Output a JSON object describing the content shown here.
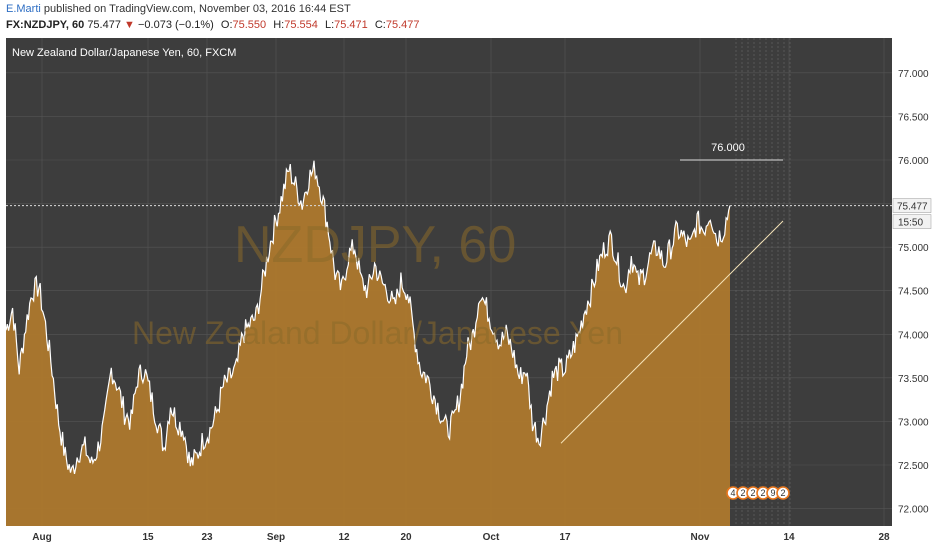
{
  "header": {
    "author": "E.Marti",
    "published_text": "published on TradingView.com, November 03, 2016 16:44 EST",
    "symbol": "FX:NZDJPY, 60",
    "last": "75.477",
    "change": "−0.073 (−0.1%)",
    "o_label": "O:",
    "o": "75.550",
    "h_label": "H:",
    "h": "75.554",
    "l_label": "L:",
    "l": "75.471",
    "c_label": "C:",
    "c": "75.477"
  },
  "watermark": {
    "symbol": "NZDJPY, 60",
    "name": "New Zealand Dollar/Japanese Yen"
  },
  "colors": {
    "plot_bg": "#3d3d3d",
    "area_fill": "#b07a2c",
    "line": "#ffffff",
    "price_marker": "#f2f2f2",
    "event_icon": "#e8761d"
  },
  "chart_data": {
    "type": "area",
    "title": "New Zealand Dollar/Japanese Yen, 60, FXCM",
    "xlabel": "",
    "ylabel": "",
    "ylim": [
      71.8,
      77.4
    ],
    "x_ticks": [
      "Aug",
      "15",
      "23",
      "Sep",
      "12",
      "20",
      "Oct",
      "17",
      "Nov",
      "14",
      "28"
    ],
    "y_ticks": [
      "72.000",
      "72.500",
      "73.000",
      "73.500",
      "74.000",
      "74.500",
      "75.000",
      "75.500",
      "76.000",
      "76.500",
      "77.000"
    ],
    "grid": true,
    "series": [
      {
        "values": [
          74.05,
          74.3,
          73.6,
          74.1,
          74.5,
          74.55,
          74.1,
          73.6,
          73.0,
          72.6,
          72.4,
          72.65,
          72.7,
          72.5,
          72.7,
          73.0,
          73.6,
          73.4,
          73.1,
          73.0,
          73.5,
          73.6,
          73.3,
          73.0,
          72.7,
          73.2,
          73.0,
          72.9,
          72.5,
          72.6,
          72.8,
          72.9,
          73.1,
          73.4,
          73.5,
          73.6,
          74.0,
          74.1,
          74.2,
          74.6,
          75.0,
          75.3,
          75.6,
          75.9,
          75.7,
          75.5,
          75.8,
          75.9,
          75.6,
          75.2,
          74.7,
          74.5,
          74.9,
          75.0,
          74.6,
          74.5,
          74.8,
          74.6,
          74.5,
          74.3,
          74.6,
          74.5,
          74.0,
          73.6,
          73.5,
          73.3,
          73.1,
          72.9,
          73.0,
          73.3,
          73.8,
          74.0,
          74.5,
          74.3,
          74.1,
          73.9,
          74.0,
          73.8,
          73.5,
          73.6,
          73.0,
          72.8,
          73.1,
          73.5,
          73.6,
          73.6,
          73.8,
          74.0,
          74.3,
          74.5,
          74.8,
          75.0,
          75.1,
          74.8,
          74.5,
          74.9,
          74.6,
          74.7,
          74.9,
          75.0,
          74.8,
          75.0,
          75.2,
          75.1,
          75.0,
          75.3,
          75.2,
          75.4,
          75.1,
          75.2,
          75.477
        ],
        "color": "#b07a2c"
      }
    ],
    "current_price": 75.477,
    "timer": "15:50",
    "annotations": [
      {
        "type": "level",
        "value": 76.0,
        "label": "76.000"
      },
      {
        "type": "trend_line",
        "from": 72.75,
        "to": 75.3
      }
    ],
    "event_badges": [
      "4",
      "2",
      "2",
      "2",
      "9",
      "2"
    ]
  }
}
